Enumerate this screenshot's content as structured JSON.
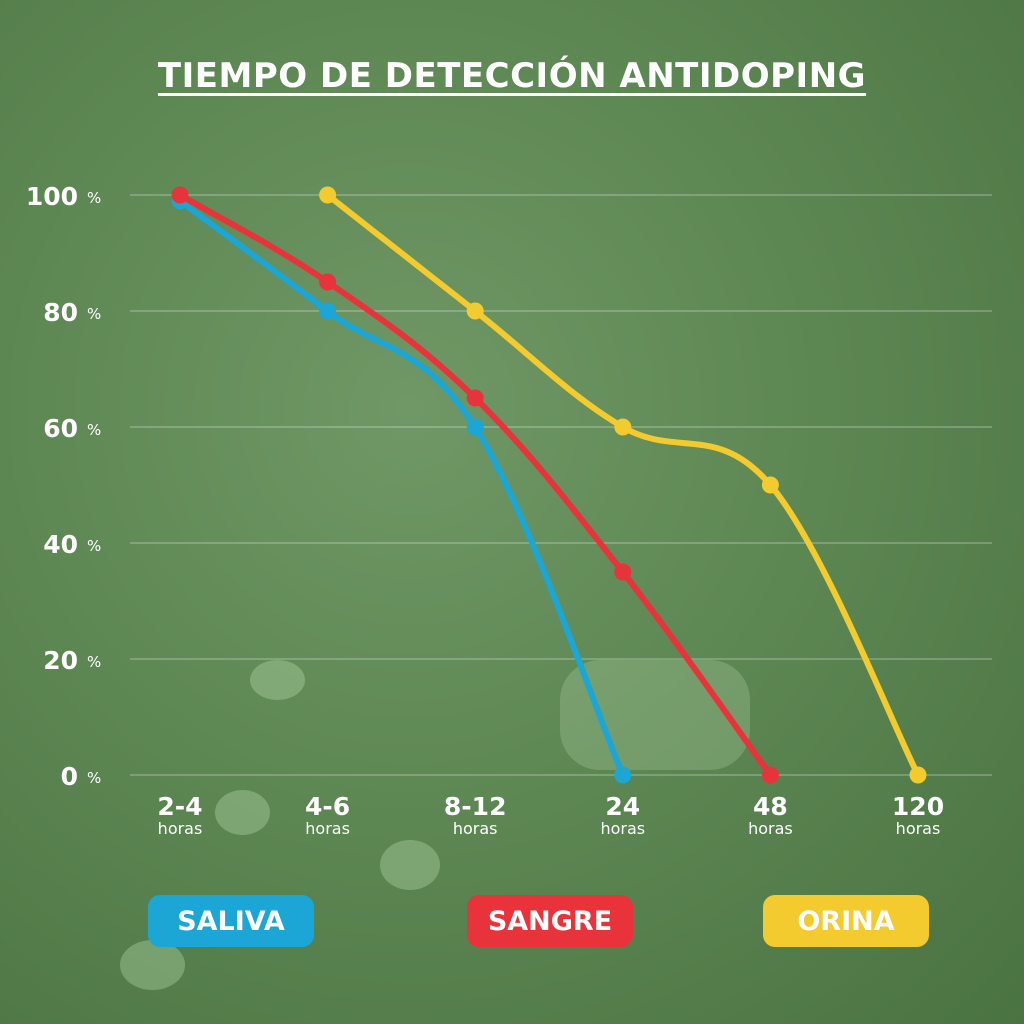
{
  "title": "TIEMPO DE DETECCIÓN ANTIDOPING",
  "chart_data": {
    "type": "line",
    "title": "TIEMPO DE DETECCIÓN ANTIDOPING",
    "categories": [
      "2-4",
      "4-6",
      "8-12",
      "24",
      "48",
      "120"
    ],
    "category_unit": "horas",
    "ylim": [
      0,
      100
    ],
    "yticks": [
      0,
      20,
      40,
      60,
      80,
      100
    ],
    "ytick_suffix": "%",
    "grid": true,
    "legend_position": "bottom",
    "series": [
      {
        "name": "SALIVA",
        "color": "#1ba6d6",
        "values": [
          99,
          80,
          60,
          0,
          null,
          null
        ]
      },
      {
        "name": "SANGRE",
        "color": "#e8333a",
        "values": [
          100,
          85,
          65,
          35,
          0,
          null
        ]
      },
      {
        "name": "ORINA",
        "color": "#f3cb2e",
        "values": [
          null,
          100,
          80,
          60,
          50,
          0
        ]
      }
    ]
  }
}
